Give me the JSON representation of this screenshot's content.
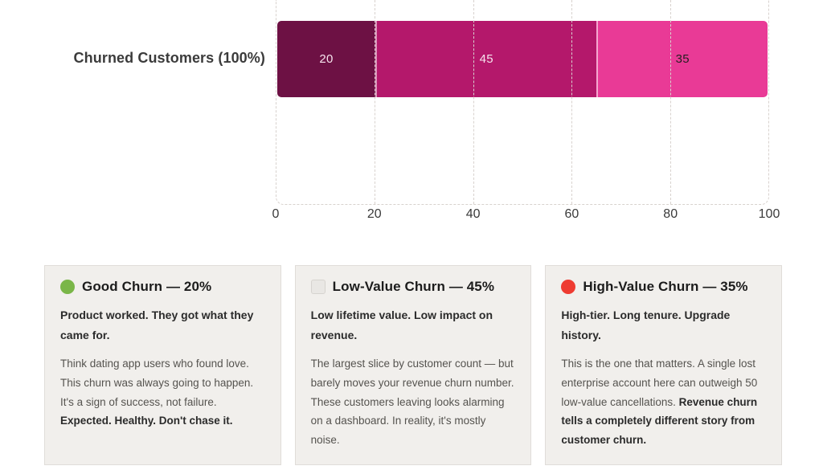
{
  "chart": {
    "y_label": "Churned Customers (100%)"
  },
  "chart_data": {
    "type": "bar",
    "subtype": "horizontal-stacked",
    "category": "Churned Customers (100%)",
    "segments": [
      {
        "name": "Good Churn",
        "value": 20,
        "color": "#6d1144",
        "label_color": "#f6e3ed"
      },
      {
        "name": "Low-Value Churn",
        "value": 45,
        "color": "#b4186b",
        "label_color": "#f6e3ed"
      },
      {
        "name": "High-Value Churn",
        "value": 35,
        "color": "#e93a96",
        "label_color": "#231f20"
      }
    ],
    "x_ticks": [
      0,
      20,
      40,
      60,
      80,
      100
    ],
    "xlim": [
      0,
      100
    ],
    "grid": "dashed-vertical",
    "legend_position": "cards-below"
  },
  "cards": [
    {
      "icon": "green-circle",
      "icon_color": "#7ab648",
      "title": "Good Churn — 20%",
      "subtitle": "Product worked. They got what they came for.",
      "body": "Think dating app users who found love. This churn was always going to happen. It's a sign of success, not failure. ",
      "body_bold": "Expected. Healthy. Don't chase it."
    },
    {
      "icon": "light-gray-square",
      "icon_color": "#e9e7e4",
      "title": "Low-Value Churn — 45%",
      "subtitle": "Low lifetime value. Low impact on revenue.",
      "body": "The largest slice by customer count — but barely moves your revenue churn number. These customers leaving looks alarming on a dashboard. In reality, it's mostly noise.",
      "body_bold": ""
    },
    {
      "icon": "red-circle",
      "icon_color": "#ee3b31",
      "title": "High-Value Churn — 35%",
      "subtitle": "High-tier. Long tenure. Upgrade history.",
      "body": "This is the one that matters. A single lost enterprise account here can outweigh 50 low-value cancellations. ",
      "body_bold": "Revenue churn tells a completely different story from customer churn."
    }
  ]
}
